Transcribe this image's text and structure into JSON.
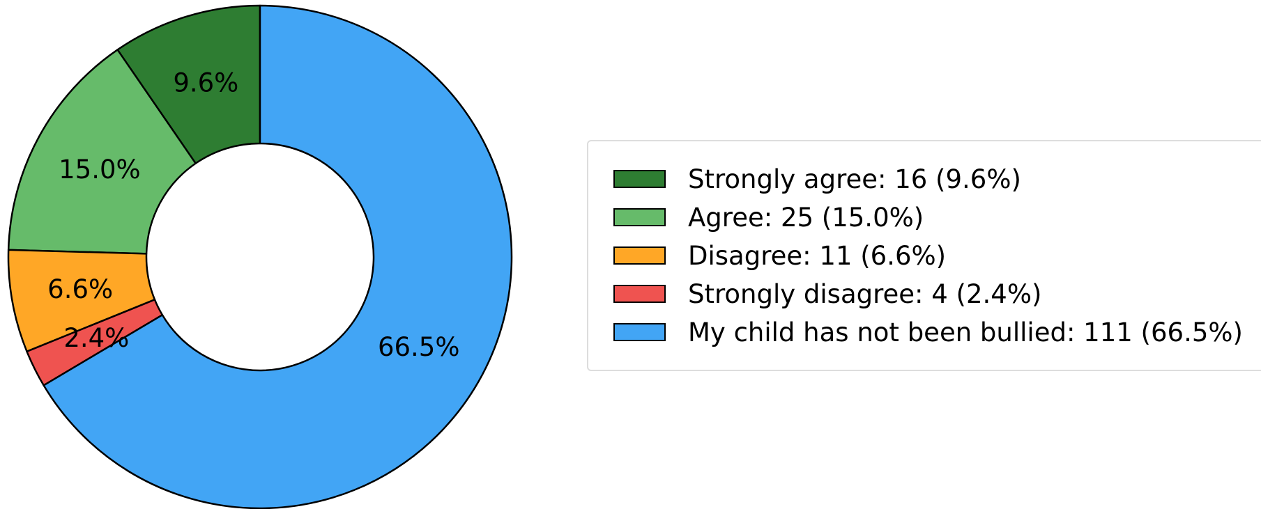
{
  "chart_data": {
    "type": "pie",
    "donut": true,
    "slices": [
      {
        "label": "Strongly agree",
        "count": 16,
        "percent": 9.6,
        "color": "#2e7d32",
        "legend": "Strongly agree: 16 (9.6%)",
        "pct_label": "9.6%"
      },
      {
        "label": "Agree",
        "count": 25,
        "percent": 15.0,
        "color": "#66bb6a",
        "legend": "Agree: 25 (15.0%)",
        "pct_label": "15.0%"
      },
      {
        "label": "Disagree",
        "count": 11,
        "percent": 6.6,
        "color": "#ffa726",
        "legend": "Disagree: 11 (6.6%)",
        "pct_label": "6.6%"
      },
      {
        "label": "Strongly disagree",
        "count": 4,
        "percent": 2.4,
        "color": "#ef5350",
        "legend": "Strongly disagree: 4 (2.4%)",
        "pct_label": "2.4%"
      },
      {
        "label": "My child has not been bullied",
        "count": 111,
        "percent": 66.5,
        "color": "#42a5f5",
        "legend": "My child has not been bullied: 111 (66.5%)",
        "pct_label": "66.5%"
      }
    ],
    "start_angle": "top",
    "direction": "counterclockwise",
    "legend_position": "right"
  }
}
